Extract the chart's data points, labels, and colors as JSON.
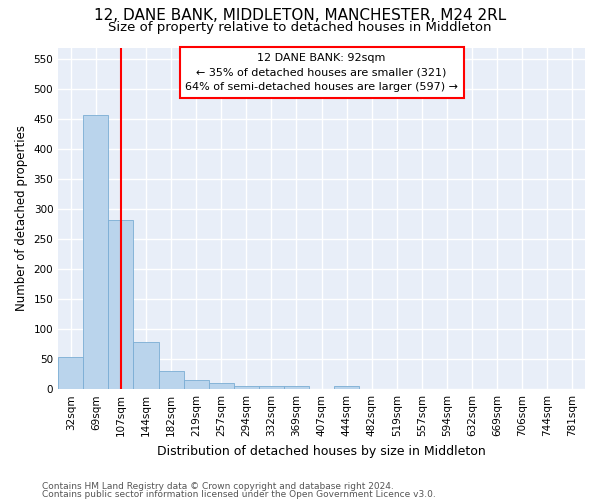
{
  "title": "12, DANE BANK, MIDDLETON, MANCHESTER, M24 2RL",
  "subtitle": "Size of property relative to detached houses in Middleton",
  "xlabel": "Distribution of detached houses by size in Middleton",
  "ylabel": "Number of detached properties",
  "bar_color": "#bad4ec",
  "bar_edge_color": "#7aadd4",
  "background_color": "#e8eef8",
  "grid_color": "#ffffff",
  "categories": [
    "32sqm",
    "69sqm",
    "107sqm",
    "144sqm",
    "182sqm",
    "219sqm",
    "257sqm",
    "294sqm",
    "332sqm",
    "369sqm",
    "407sqm",
    "444sqm",
    "482sqm",
    "519sqm",
    "557sqm",
    "594sqm",
    "632sqm",
    "669sqm",
    "706sqm",
    "744sqm",
    "781sqm"
  ],
  "values": [
    53,
    457,
    283,
    78,
    30,
    15,
    10,
    5,
    5,
    6,
    0,
    5,
    0,
    0,
    0,
    0,
    0,
    0,
    0,
    0,
    0
  ],
  "vline_x": 2.0,
  "annotation_text": "12 DANE BANK: 92sqm\n← 35% of detached houses are smaller (321)\n64% of semi-detached houses are larger (597) →",
  "ylim": [
    0,
    570
  ],
  "yticks": [
    0,
    50,
    100,
    150,
    200,
    250,
    300,
    350,
    400,
    450,
    500,
    550
  ],
  "footer_line1": "Contains HM Land Registry data © Crown copyright and database right 2024.",
  "footer_line2": "Contains public sector information licensed under the Open Government Licence v3.0.",
  "title_fontsize": 11,
  "subtitle_fontsize": 9.5,
  "annotation_fontsize": 8,
  "axis_label_fontsize": 9,
  "ylabel_fontsize": 8.5,
  "tick_fontsize": 7.5,
  "footer_fontsize": 6.5
}
